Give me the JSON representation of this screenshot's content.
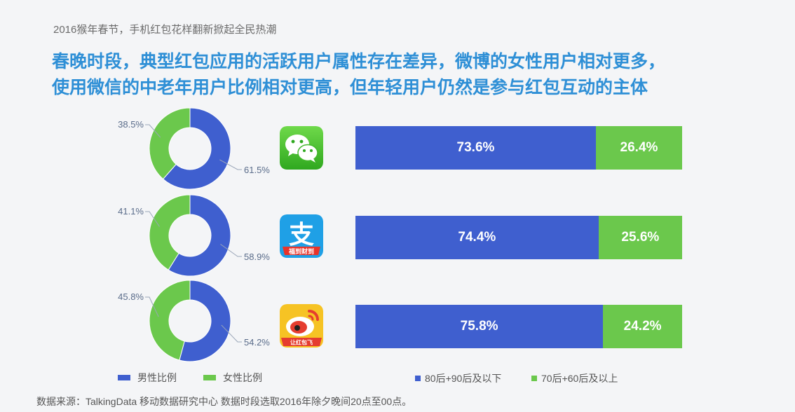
{
  "header": {
    "subtitle": "2016猴年春节，手机红包花样翻新掀起全民热潮",
    "headline_line1": "春晚时段，典型红包应用的活跃用户属性存在差异，微博的女性用户相对更多，",
    "headline_line2": "使用微信的中老年用户比例相对更高，但年轻用户仍然是参与红包互动的主体"
  },
  "colors": {
    "male": "#3f5fcf",
    "female": "#6bc84c",
    "young": "#3f5fcf",
    "old": "#6bc84c"
  },
  "apps": [
    {
      "icon": "wechat-icon"
    },
    {
      "icon": "alipay-icon",
      "icon_text": "支",
      "icon_caption": "福到财到"
    },
    {
      "icon": "weibo-icon",
      "icon_caption": "让红包飞"
    }
  ],
  "chart_data": [
    {
      "type": "pie",
      "variant": "donut",
      "series": [
        {
          "name": "男性比例",
          "values": [
            61.5,
            58.9,
            54.2
          ]
        },
        {
          "name": "女性比例",
          "values": [
            38.5,
            41.1,
            45.8
          ]
        }
      ],
      "labels": {
        "male": [
          "61.5%",
          "58.9%",
          "54.2%"
        ],
        "female": [
          "38.5%",
          "41.1%",
          "45.8%"
        ]
      }
    },
    {
      "type": "bar",
      "orientation": "horizontal",
      "stacked": true,
      "series": [
        {
          "name": "80后+90后及以下",
          "values": [
            73.6,
            74.4,
            75.8
          ]
        },
        {
          "name": "70后+60后及以上",
          "values": [
            26.4,
            25.6,
            24.2
          ]
        }
      ],
      "labels": {
        "young": [
          "73.6%",
          "74.4%",
          "75.8%"
        ],
        "old": [
          "26.4%",
          "25.6%",
          "24.2%"
        ]
      }
    }
  ],
  "legend": {
    "male": "男性比例",
    "female": "女性比例",
    "young": "80后+90后及以下",
    "old": "70后+60后及以上"
  },
  "footer": {
    "source": "数据来源：TalkingData 移动数据研究中心 数据时段选取2016年除夕晚间20点至00点。"
  }
}
